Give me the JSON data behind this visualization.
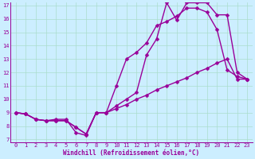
{
  "xlabel": "Windchill (Refroidissement éolien,°C)",
  "bg_color": "#cceeff",
  "line_color": "#990099",
  "grid_color": "#aaddcc",
  "xlim": [
    -0.5,
    23.5
  ],
  "ylim": [
    6.8,
    17.2
  ],
  "xticks": [
    0,
    1,
    2,
    3,
    4,
    5,
    6,
    7,
    8,
    9,
    10,
    11,
    12,
    13,
    14,
    15,
    16,
    17,
    18,
    19,
    20,
    21,
    22,
    23
  ],
  "yticks": [
    7,
    8,
    9,
    10,
    11,
    12,
    13,
    14,
    15,
    16,
    17
  ],
  "line1_x": [
    0,
    1,
    2,
    3,
    4,
    5,
    6,
    7,
    8,
    9,
    10,
    11,
    12,
    13,
    14,
    15,
    16,
    17,
    18,
    19,
    20,
    21,
    22,
    23
  ],
  "line1_y": [
    9.0,
    8.9,
    8.5,
    8.4,
    8.5,
    8.5,
    7.5,
    7.3,
    9.0,
    9.0,
    9.3,
    9.6,
    10.0,
    10.3,
    10.7,
    11.0,
    11.3,
    11.6,
    12.0,
    12.3,
    12.7,
    13.0,
    11.5,
    11.5
  ],
  "line2_x": [
    0,
    1,
    2,
    3,
    4,
    5,
    6,
    7,
    8,
    9,
    10,
    11,
    12,
    13,
    14,
    15,
    16,
    17,
    18,
    19,
    20,
    21,
    22,
    23
  ],
  "line2_y": [
    9.0,
    8.9,
    8.5,
    8.4,
    8.4,
    8.4,
    7.9,
    7.4,
    9.0,
    9.0,
    11.0,
    13.0,
    13.5,
    14.2,
    15.5,
    15.8,
    16.2,
    16.8,
    16.8,
    16.5,
    15.2,
    12.2,
    11.7,
    11.5
  ],
  "line3_x": [
    0,
    1,
    2,
    3,
    4,
    5,
    6,
    7,
    8,
    9,
    10,
    11,
    12,
    13,
    14,
    15,
    16,
    17,
    18,
    19,
    20,
    21,
    22,
    23
  ],
  "line3_y": [
    9.0,
    8.9,
    8.5,
    8.4,
    8.4,
    8.4,
    7.9,
    7.4,
    9.0,
    9.0,
    9.5,
    10.0,
    10.5,
    13.3,
    14.5,
    17.2,
    15.9,
    17.2,
    17.2,
    17.2,
    16.3,
    16.3,
    12.0,
    11.5
  ],
  "marker": "D",
  "markersize": 2.5,
  "linewidth": 1.0,
  "tick_fontsize": 5.0,
  "xlabel_fontsize": 5.5
}
